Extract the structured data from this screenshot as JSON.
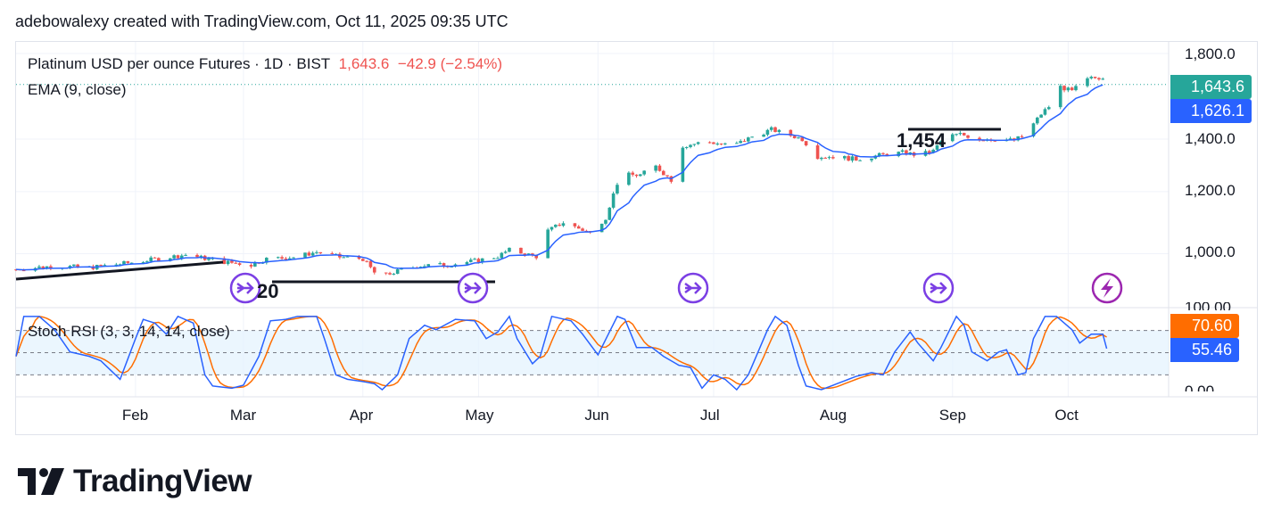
{
  "header": "adebowalexy created with TradingView.com, Oct 11, 2025 09:35 UTC",
  "legend": {
    "symbol": "Platinum USD per ounce Futures · 1D · BIST",
    "price": "1,643.6",
    "change": "−42.9 (−2.54%)",
    "ema": "EMA (9, close)",
    "stoch": "Stoch RSI (3, 3, 14, 14, close)"
  },
  "tags": {
    "price": "1,643.6",
    "ema": "1,626.1",
    "stoch_d": "70.60",
    "stoch_k": "55.46"
  },
  "annotations": {
    "level_a": "20",
    "level_b": "1,454"
  },
  "logo": "TradingView",
  "colors": {
    "up": "#26a69a",
    "down": "#ef5350",
    "ema": "#2962ff",
    "stoch_k": "#2962ff",
    "stoch_d": "#ff6d00",
    "icon": "#7b3fe4",
    "lightning": "#9c27b0"
  },
  "chart_data": {
    "type": "candlestick",
    "title": "Platinum USD per ounce Futures · 1D · BIST",
    "x_unit": "days since 2025-01-01",
    "price_axis": {
      "scale": "log",
      "ticks": [
        "1,800.0",
        "1,400.0",
        "1,200.0",
        "1,000.0"
      ],
      "tick_values": [
        1800,
        1400,
        1200,
        1000
      ]
    },
    "stoch_axis": {
      "ticks": [
        "100.00",
        "0.00"
      ],
      "levels": [
        80,
        50,
        20
      ]
    },
    "months": [
      {
        "label": "Feb",
        "day": 31
      },
      {
        "label": "Mar",
        "day": 59
      },
      {
        "label": "Apr",
        "day": 90
      },
      {
        "label": "May",
        "day": 120
      },
      {
        "label": "Jun",
        "day": 151
      },
      {
        "label": "Jul",
        "day": 181
      },
      {
        "label": "Aug",
        "day": 212
      },
      {
        "label": "Sep",
        "day": 243
      },
      {
        "label": "Oct",
        "day": 273
      }
    ],
    "close_keypoints": [
      [
        0,
        955
      ],
      [
        10,
        965
      ],
      [
        19,
        960
      ],
      [
        31,
        976
      ],
      [
        44,
        997
      ],
      [
        54,
        976
      ],
      [
        61,
        968
      ],
      [
        65,
        985
      ],
      [
        72,
        990
      ],
      [
        78,
        1005
      ],
      [
        84,
        990
      ],
      [
        90,
        985
      ],
      [
        93,
        946
      ],
      [
        95,
        935
      ],
      [
        99,
        950
      ],
      [
        105,
        966
      ],
      [
        112,
        968
      ],
      [
        119,
        979
      ],
      [
        125,
        992
      ],
      [
        128,
        1011
      ],
      [
        135,
        992
      ],
      [
        137,
        1063
      ],
      [
        142,
        1096
      ],
      [
        149,
        1063
      ],
      [
        153,
        1112
      ],
      [
        156,
        1230
      ],
      [
        158,
        1260
      ],
      [
        162,
        1260
      ],
      [
        166,
        1292
      ],
      [
        171,
        1230
      ],
      [
        173,
        1372
      ],
      [
        179,
        1390
      ],
      [
        186,
        1372
      ],
      [
        191,
        1410
      ],
      [
        196,
        1440
      ],
      [
        200,
        1420
      ],
      [
        204,
        1400
      ],
      [
        208,
        1330
      ],
      [
        212,
        1330
      ],
      [
        218,
        1320
      ],
      [
        224,
        1335
      ],
      [
        230,
        1346
      ],
      [
        234,
        1335
      ],
      [
        238,
        1352
      ],
      [
        241,
        1410
      ],
      [
        245,
        1420
      ],
      [
        250,
        1400
      ],
      [
        255,
        1400
      ],
      [
        259,
        1395
      ],
      [
        262,
        1420
      ],
      [
        266,
        1507
      ],
      [
        268,
        1540
      ],
      [
        270,
        1640
      ],
      [
        274,
        1610
      ],
      [
        277,
        1660
      ],
      [
        279,
        1673
      ],
      [
        282,
        1680
      ],
      [
        283,
        1643.6
      ]
    ],
    "ema_period": 9,
    "stoch_k_keypoints": [
      [
        0,
        45
      ],
      [
        2,
        99
      ],
      [
        6,
        99
      ],
      [
        10,
        81
      ],
      [
        14,
        51
      ],
      [
        19,
        45
      ],
      [
        22,
        39
      ],
      [
        27,
        14
      ],
      [
        31,
        69
      ],
      [
        33,
        95
      ],
      [
        36,
        90
      ],
      [
        39,
        75
      ],
      [
        42,
        99
      ],
      [
        46,
        90
      ],
      [
        49,
        20
      ],
      [
        51,
        5
      ],
      [
        56,
        2
      ],
      [
        59,
        6
      ],
      [
        63,
        45
      ],
      [
        66,
        93
      ],
      [
        70,
        95
      ],
      [
        73,
        99
      ],
      [
        78,
        99
      ],
      [
        80,
        69
      ],
      [
        83,
        20
      ],
      [
        86,
        14
      ],
      [
        90,
        11
      ],
      [
        93,
        8
      ],
      [
        95,
        0
      ],
      [
        99,
        20
      ],
      [
        102,
        69
      ],
      [
        106,
        87
      ],
      [
        109,
        81
      ],
      [
        114,
        95
      ],
      [
        119,
        93
      ],
      [
        122,
        69
      ],
      [
        125,
        78
      ],
      [
        128,
        99
      ],
      [
        130,
        69
      ],
      [
        134,
        35
      ],
      [
        136,
        45
      ],
      [
        139,
        99
      ],
      [
        144,
        93
      ],
      [
        147,
        75
      ],
      [
        151,
        47
      ],
      [
        156,
        99
      ],
      [
        158,
        95
      ],
      [
        161,
        57
      ],
      [
        165,
        57
      ],
      [
        168,
        45
      ],
      [
        172,
        33
      ],
      [
        175,
        30
      ],
      [
        178,
        2
      ],
      [
        181,
        20
      ],
      [
        184,
        14
      ],
      [
        187,
        0
      ],
      [
        190,
        20
      ],
      [
        195,
        81
      ],
      [
        197,
        99
      ],
      [
        200,
        87
      ],
      [
        203,
        33
      ],
      [
        205,
        5
      ],
      [
        209,
        0
      ],
      [
        213,
        8
      ],
      [
        218,
        18
      ],
      [
        222,
        23
      ],
      [
        225,
        20
      ],
      [
        228,
        51
      ],
      [
        232,
        78
      ],
      [
        234,
        63
      ],
      [
        238,
        39
      ],
      [
        240,
        57
      ],
      [
        244,
        99
      ],
      [
        246,
        87
      ],
      [
        248,
        51
      ],
      [
        252,
        39
      ],
      [
        255,
        51
      ],
      [
        257,
        54
      ],
      [
        260,
        20
      ],
      [
        262,
        23
      ],
      [
        264,
        69
      ],
      [
        267,
        99
      ],
      [
        270,
        99
      ],
      [
        274,
        81
      ],
      [
        276,
        63
      ],
      [
        279,
        75
      ],
      [
        282,
        75
      ],
      [
        283,
        55.46
      ]
    ]
  }
}
